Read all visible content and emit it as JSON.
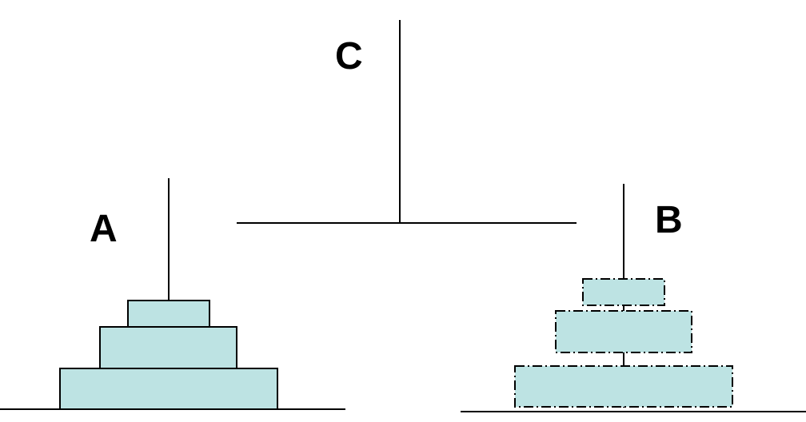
{
  "diagram": {
    "labels": {
      "a": "A",
      "b": "B",
      "c": "C"
    },
    "colors": {
      "disk_fill": "#bde3e3",
      "line": "#000000",
      "background": "#ffffff"
    },
    "peg_a": {
      "disk_count": 3,
      "disk_style": "solid"
    },
    "peg_b": {
      "disk_count": 3,
      "disk_style": "dash-dot"
    },
    "peg_c": {
      "disk_count": 0
    }
  }
}
